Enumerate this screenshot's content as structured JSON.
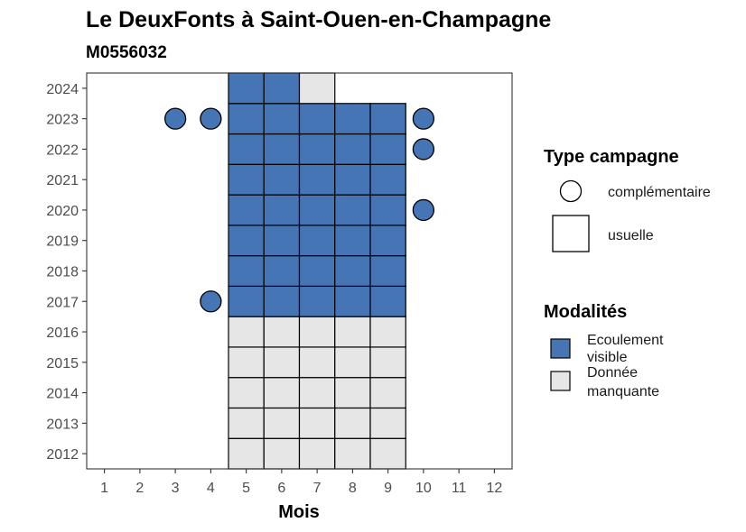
{
  "chart_data": {
    "type": "heatmap",
    "title": "Le DeuxFonts à Saint-Ouen-en-Champagne",
    "subtitle": "M0556032",
    "xlabel": "Mois",
    "ylabel": "",
    "x_ticks": [
      1,
      2,
      3,
      4,
      5,
      6,
      7,
      8,
      9,
      10,
      11,
      12
    ],
    "y_ticks": [
      2012,
      2013,
      2014,
      2015,
      2016,
      2017,
      2018,
      2019,
      2020,
      2021,
      2022,
      2023,
      2024
    ],
    "xlim": [
      0.5,
      12.5
    ],
    "ylim": [
      2011.5,
      2024.5
    ],
    "colors": {
      "Ecoulement visible": "#4575b4",
      "Donnée manquante": "#e6e6e6"
    },
    "usuelle": [
      {
        "month": 5,
        "year": 2012,
        "modalite": "Donnée manquante"
      },
      {
        "month": 6,
        "year": 2012,
        "modalite": "Donnée manquante"
      },
      {
        "month": 7,
        "year": 2012,
        "modalite": "Donnée manquante"
      },
      {
        "month": 8,
        "year": 2012,
        "modalite": "Donnée manquante"
      },
      {
        "month": 9,
        "year": 2012,
        "modalite": "Donnée manquante"
      },
      {
        "month": 5,
        "year": 2013,
        "modalite": "Donnée manquante"
      },
      {
        "month": 6,
        "year": 2013,
        "modalite": "Donnée manquante"
      },
      {
        "month": 7,
        "year": 2013,
        "modalite": "Donnée manquante"
      },
      {
        "month": 8,
        "year": 2013,
        "modalite": "Donnée manquante"
      },
      {
        "month": 9,
        "year": 2013,
        "modalite": "Donnée manquante"
      },
      {
        "month": 5,
        "year": 2014,
        "modalite": "Donnée manquante"
      },
      {
        "month": 6,
        "year": 2014,
        "modalite": "Donnée manquante"
      },
      {
        "month": 7,
        "year": 2014,
        "modalite": "Donnée manquante"
      },
      {
        "month": 8,
        "year": 2014,
        "modalite": "Donnée manquante"
      },
      {
        "month": 9,
        "year": 2014,
        "modalite": "Donnée manquante"
      },
      {
        "month": 5,
        "year": 2015,
        "modalite": "Donnée manquante"
      },
      {
        "month": 6,
        "year": 2015,
        "modalite": "Donnée manquante"
      },
      {
        "month": 7,
        "year": 2015,
        "modalite": "Donnée manquante"
      },
      {
        "month": 8,
        "year": 2015,
        "modalite": "Donnée manquante"
      },
      {
        "month": 9,
        "year": 2015,
        "modalite": "Donnée manquante"
      },
      {
        "month": 5,
        "year": 2016,
        "modalite": "Donnée manquante"
      },
      {
        "month": 6,
        "year": 2016,
        "modalite": "Donnée manquante"
      },
      {
        "month": 7,
        "year": 2016,
        "modalite": "Donnée manquante"
      },
      {
        "month": 8,
        "year": 2016,
        "modalite": "Donnée manquante"
      },
      {
        "month": 9,
        "year": 2016,
        "modalite": "Donnée manquante"
      },
      {
        "month": 5,
        "year": 2017,
        "modalite": "Ecoulement visible"
      },
      {
        "month": 6,
        "year": 2017,
        "modalite": "Ecoulement visible"
      },
      {
        "month": 7,
        "year": 2017,
        "modalite": "Ecoulement visible"
      },
      {
        "month": 8,
        "year": 2017,
        "modalite": "Ecoulement visible"
      },
      {
        "month": 9,
        "year": 2017,
        "modalite": "Ecoulement visible"
      },
      {
        "month": 5,
        "year": 2018,
        "modalite": "Ecoulement visible"
      },
      {
        "month": 6,
        "year": 2018,
        "modalite": "Ecoulement visible"
      },
      {
        "month": 7,
        "year": 2018,
        "modalite": "Ecoulement visible"
      },
      {
        "month": 8,
        "year": 2018,
        "modalite": "Ecoulement visible"
      },
      {
        "month": 9,
        "year": 2018,
        "modalite": "Ecoulement visible"
      },
      {
        "month": 5,
        "year": 2019,
        "modalite": "Ecoulement visible"
      },
      {
        "month": 6,
        "year": 2019,
        "modalite": "Ecoulement visible"
      },
      {
        "month": 7,
        "year": 2019,
        "modalite": "Ecoulement visible"
      },
      {
        "month": 8,
        "year": 2019,
        "modalite": "Ecoulement visible"
      },
      {
        "month": 9,
        "year": 2019,
        "modalite": "Ecoulement visible"
      },
      {
        "month": 5,
        "year": 2020,
        "modalite": "Ecoulement visible"
      },
      {
        "month": 6,
        "year": 2020,
        "modalite": "Ecoulement visible"
      },
      {
        "month": 7,
        "year": 2020,
        "modalite": "Ecoulement visible"
      },
      {
        "month": 8,
        "year": 2020,
        "modalite": "Ecoulement visible"
      },
      {
        "month": 9,
        "year": 2020,
        "modalite": "Ecoulement visible"
      },
      {
        "month": 5,
        "year": 2021,
        "modalite": "Ecoulement visible"
      },
      {
        "month": 6,
        "year": 2021,
        "modalite": "Ecoulement visible"
      },
      {
        "month": 7,
        "year": 2021,
        "modalite": "Ecoulement visible"
      },
      {
        "month": 8,
        "year": 2021,
        "modalite": "Ecoulement visible"
      },
      {
        "month": 9,
        "year": 2021,
        "modalite": "Ecoulement visible"
      },
      {
        "month": 5,
        "year": 2022,
        "modalite": "Ecoulement visible"
      },
      {
        "month": 6,
        "year": 2022,
        "modalite": "Ecoulement visible"
      },
      {
        "month": 7,
        "year": 2022,
        "modalite": "Ecoulement visible"
      },
      {
        "month": 8,
        "year": 2022,
        "modalite": "Ecoulement visible"
      },
      {
        "month": 9,
        "year": 2022,
        "modalite": "Ecoulement visible"
      },
      {
        "month": 5,
        "year": 2023,
        "modalite": "Ecoulement visible"
      },
      {
        "month": 6,
        "year": 2023,
        "modalite": "Ecoulement visible"
      },
      {
        "month": 7,
        "year": 2023,
        "modalite": "Ecoulement visible"
      },
      {
        "month": 8,
        "year": 2023,
        "modalite": "Ecoulement visible"
      },
      {
        "month": 9,
        "year": 2023,
        "modalite": "Ecoulement visible"
      },
      {
        "month": 5,
        "year": 2024,
        "modalite": "Ecoulement visible"
      },
      {
        "month": 6,
        "year": 2024,
        "modalite": "Ecoulement visible"
      },
      {
        "month": 7,
        "year": 2024,
        "modalite": "Donnée manquante"
      }
    ],
    "complementaire": [
      {
        "month": 3,
        "year": 2023,
        "modalite": "Ecoulement visible"
      },
      {
        "month": 4,
        "year": 2023,
        "modalite": "Ecoulement visible"
      },
      {
        "month": 10,
        "year": 2023,
        "modalite": "Ecoulement visible"
      },
      {
        "month": 10,
        "year": 2022,
        "modalite": "Ecoulement visible"
      },
      {
        "month": 10,
        "year": 2020,
        "modalite": "Ecoulement visible"
      },
      {
        "month": 4,
        "year": 2017,
        "modalite": "Ecoulement visible"
      }
    ],
    "legend": {
      "placement": "right",
      "type_title": "Type campagne",
      "type_items": [
        {
          "shape": "circle",
          "label": "complémentaire"
        },
        {
          "shape": "square",
          "label": "usuelle"
        }
      ],
      "modalites_title": "Modalités",
      "modalites_items": [
        {
          "key": "Ecoulement visible",
          "lines": [
            "Ecoulement",
            "visible"
          ]
        },
        {
          "key": "Donnée manquante",
          "lines": [
            "Donnée",
            "manquante"
          ]
        }
      ]
    }
  }
}
